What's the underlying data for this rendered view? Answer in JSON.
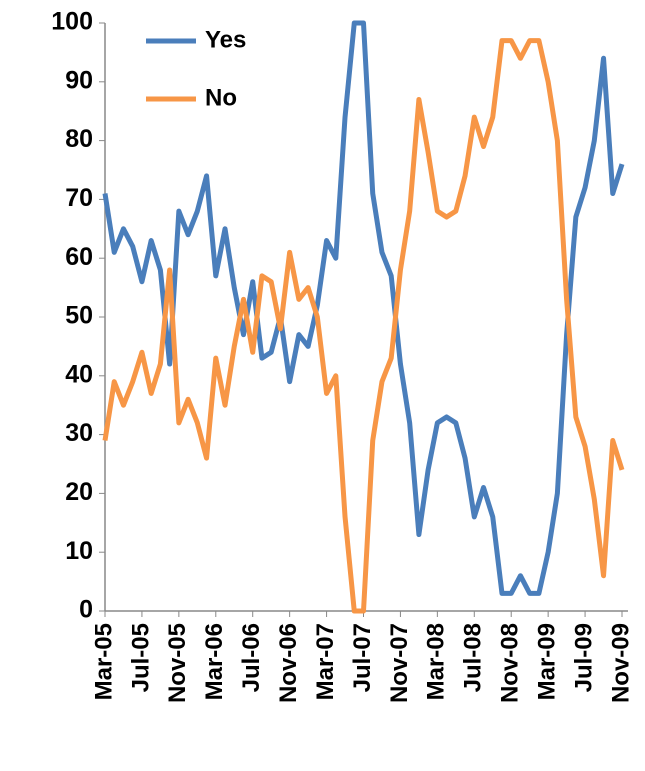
{
  "chart_data": {
    "type": "line",
    "categories": [
      "Mar-05",
      null,
      null,
      null,
      "Jul-05",
      null,
      null,
      null,
      "Nov-05",
      null,
      null,
      null,
      "Mar-06",
      null,
      null,
      null,
      "Jul-06",
      null,
      null,
      null,
      "Nov-06",
      null,
      null,
      null,
      "Mar-07",
      null,
      null,
      null,
      "Jul-07",
      null,
      null,
      null,
      "Nov-07",
      null,
      null,
      null,
      "Mar-08",
      null,
      null,
      null,
      "Jul-08",
      null,
      null,
      null,
      "Nov-08",
      null,
      null,
      null,
      "Mar-09",
      null,
      null,
      null,
      "Jul-09",
      null,
      null,
      null,
      "Nov-09"
    ],
    "series": [
      {
        "name": "Yes",
        "color": "#4a7ebb",
        "values": [
          71,
          61,
          65,
          62,
          56,
          63,
          58,
          42,
          68,
          64,
          68,
          74,
          57,
          65,
          55,
          47,
          56,
          43,
          44,
          50,
          39,
          47,
          45,
          52,
          63,
          60,
          84,
          100,
          100,
          71,
          61,
          57,
          42,
          32,
          13,
          24,
          32,
          33,
          32,
          26,
          16,
          21,
          16,
          3,
          3,
          6,
          3,
          3,
          10,
          20,
          47,
          67,
          72,
          80,
          94,
          71,
          76
        ]
      },
      {
        "name": "No",
        "color": "#f79646",
        "values": [
          29,
          39,
          35,
          39,
          44,
          37,
          42,
          58,
          32,
          36,
          32,
          26,
          43,
          35,
          45,
          53,
          44,
          57,
          56,
          48,
          61,
          53,
          55,
          50,
          37,
          40,
          16,
          0,
          0,
          29,
          39,
          43,
          58,
          68,
          87,
          78,
          68,
          67,
          68,
          74,
          84,
          79,
          84,
          97,
          97,
          94,
          97,
          97,
          90,
          80,
          53,
          33,
          28,
          19,
          6,
          29,
          24
        ]
      }
    ],
    "ylim": [
      0,
      100
    ],
    "yticks": [
      0,
      10,
      20,
      30,
      40,
      50,
      60,
      70,
      80,
      90,
      100
    ],
    "grid": false,
    "legend": "top-left"
  }
}
